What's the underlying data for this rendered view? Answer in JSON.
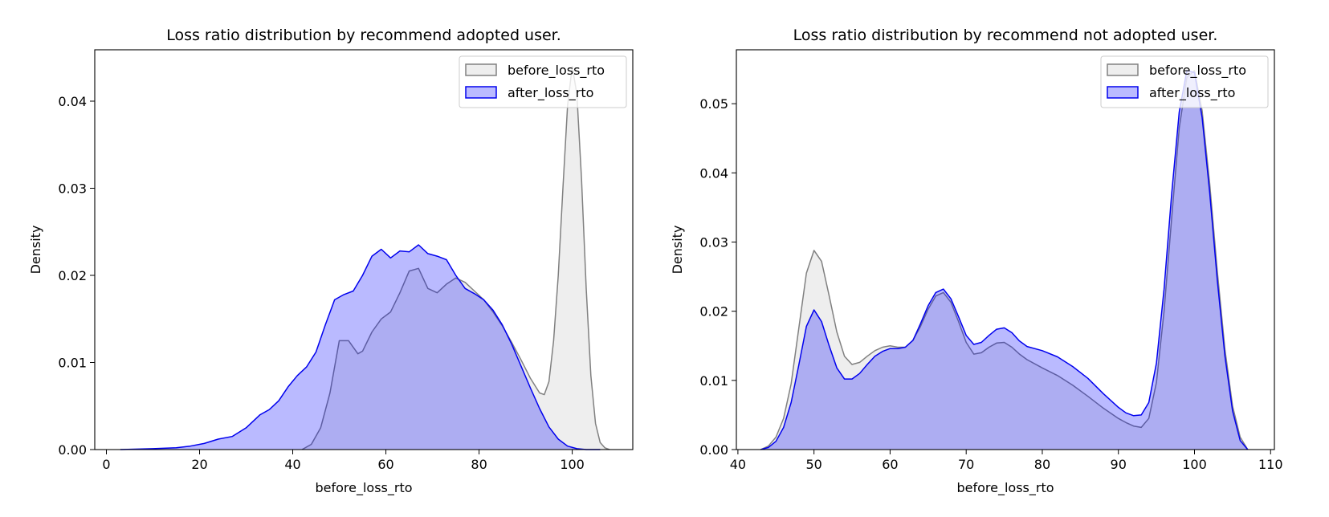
{
  "chart_data": [
    {
      "type": "area",
      "title": "Loss ratio distribution by recommend adopted user.",
      "xlabel": "before_loss_rto",
      "ylabel": "Density",
      "xlim": [
        -2.5,
        113
      ],
      "ylim": [
        0,
        0.0459
      ],
      "xticks": [
        "0",
        "20",
        "40",
        "60",
        "80",
        "100"
      ],
      "yticks": [
        "0.00",
        "0.01",
        "0.02",
        "0.03",
        "0.04"
      ],
      "xtick_values": [
        0,
        20,
        40,
        60,
        80,
        100
      ],
      "ytick_values": [
        0,
        0.01,
        0.02,
        0.03,
        0.04
      ],
      "legend": "upper right",
      "grid": false,
      "series": [
        {
          "name": "before_loss_rto",
          "color": "#808080",
          "fill": "#c0c0c0",
          "x": [
            42,
            44,
            46,
            48,
            50,
            52,
            54,
            55,
            57,
            59,
            61,
            63,
            65,
            67,
            69,
            71,
            73,
            75,
            77,
            79,
            81,
            83,
            85,
            87,
            89,
            91,
            93,
            94,
            95,
            96,
            97,
            98,
            99,
            100,
            101,
            102,
            103,
            104,
            105,
            106,
            107,
            108
          ],
          "y": [
            0.0,
            0.0006,
            0.0025,
            0.0065,
            0.0125,
            0.0125,
            0.011,
            0.0113,
            0.0135,
            0.015,
            0.0158,
            0.018,
            0.0205,
            0.0208,
            0.0185,
            0.018,
            0.019,
            0.0197,
            0.0192,
            0.0182,
            0.0172,
            0.0158,
            0.0142,
            0.0123,
            0.0103,
            0.0082,
            0.0065,
            0.0063,
            0.0078,
            0.0125,
            0.02,
            0.03,
            0.0395,
            0.044,
            0.0408,
            0.031,
            0.0185,
            0.0085,
            0.003,
            0.0008,
            0.0002,
            0.0
          ]
        },
        {
          "name": "after_loss_rto",
          "color": "#0000ee",
          "fill": "#0000ff",
          "x": [
            3,
            10,
            15,
            18,
            21,
            24,
            27,
            30,
            33,
            35,
            37,
            39,
            41,
            43,
            45,
            47,
            49,
            51,
            53,
            55,
            57,
            59,
            61,
            63,
            65,
            67,
            69,
            71,
            73,
            75,
            77,
            79,
            81,
            83,
            85,
            87,
            89,
            91,
            93,
            95,
            97,
            99,
            101,
            103,
            106
          ],
          "y": [
            0.0,
            0.0001,
            0.0002,
            0.0004,
            0.0007,
            0.0012,
            0.0015,
            0.0025,
            0.004,
            0.0046,
            0.0056,
            0.0072,
            0.0085,
            0.0095,
            0.0112,
            0.0143,
            0.0172,
            0.0178,
            0.0182,
            0.02,
            0.0222,
            0.023,
            0.022,
            0.0228,
            0.0227,
            0.0235,
            0.0225,
            0.0222,
            0.0218,
            0.02,
            0.0185,
            0.0179,
            0.0172,
            0.016,
            0.0143,
            0.0121,
            0.0096,
            0.0071,
            0.0047,
            0.0026,
            0.0012,
            0.0004,
            0.0001,
            0.0,
            0.0
          ]
        }
      ]
    },
    {
      "type": "area",
      "title": "Loss ratio distribution by recommend not adopted user.",
      "xlabel": "before_loss_rto",
      "ylabel": "Density",
      "xlim": [
        39.8,
        110.5
      ],
      "ylim": [
        0,
        0.0578
      ],
      "xticks": [
        "40",
        "50",
        "60",
        "70",
        "80",
        "90",
        "100",
        "110"
      ],
      "yticks": [
        "0.00",
        "0.01",
        "0.02",
        "0.03",
        "0.04",
        "0.05"
      ],
      "xtick_values": [
        40,
        50,
        60,
        70,
        80,
        90,
        100,
        110
      ],
      "ytick_values": [
        0,
        0.01,
        0.02,
        0.03,
        0.04,
        0.05
      ],
      "legend": "upper right",
      "grid": false,
      "series": [
        {
          "name": "before_loss_rto",
          "color": "#808080",
          "fill": "#c0c0c0",
          "x": [
            43,
            44,
            45,
            46,
            47,
            48,
            49,
            50,
            51,
            52,
            53,
            54,
            55,
            56,
            57,
            58,
            59,
            60,
            61,
            62,
            63,
            64,
            65,
            66,
            67,
            68,
            69,
            70,
            71,
            72,
            73,
            74,
            75,
            76,
            77,
            78,
            80,
            82,
            84,
            86,
            88,
            90,
            91,
            92,
            93,
            94,
            95,
            96,
            97,
            98,
            99,
            100,
            101,
            102,
            103,
            104,
            105,
            106,
            107
          ],
          "y": [
            0.0,
            0.0005,
            0.0018,
            0.0045,
            0.0095,
            0.0175,
            0.0255,
            0.0288,
            0.0272,
            0.0222,
            0.017,
            0.0135,
            0.0123,
            0.0126,
            0.0135,
            0.0143,
            0.0148,
            0.015,
            0.0148,
            0.0148,
            0.0158,
            0.0178,
            0.0203,
            0.0222,
            0.0227,
            0.0213,
            0.0185,
            0.0155,
            0.0138,
            0.014,
            0.0148,
            0.0154,
            0.0155,
            0.0148,
            0.0138,
            0.013,
            0.0118,
            0.0107,
            0.0093,
            0.0077,
            0.006,
            0.0045,
            0.0039,
            0.0034,
            0.0032,
            0.0045,
            0.0097,
            0.02,
            0.0335,
            0.0465,
            0.0538,
            0.0548,
            0.049,
            0.0385,
            0.0258,
            0.0145,
            0.0063,
            0.0018,
            0.0
          ]
        },
        {
          "name": "after_loss_rto",
          "color": "#0000ee",
          "fill": "#0000ff",
          "x": [
            43,
            44,
            45,
            46,
            47,
            48,
            49,
            50,
            51,
            52,
            53,
            54,
            55,
            56,
            57,
            58,
            59,
            60,
            61,
            62,
            63,
            64,
            65,
            66,
            67,
            68,
            69,
            70,
            71,
            72,
            73,
            74,
            75,
            76,
            77,
            78,
            80,
            82,
            84,
            86,
            88,
            90,
            91,
            92,
            93,
            94,
            95,
            96,
            97,
            98,
            99,
            100,
            101,
            102,
            103,
            104,
            105,
            106,
            107
          ],
          "y": [
            0.0,
            0.0003,
            0.0012,
            0.0032,
            0.0068,
            0.0122,
            0.0178,
            0.0202,
            0.0185,
            0.015,
            0.0118,
            0.0102,
            0.0102,
            0.011,
            0.0123,
            0.0135,
            0.0142,
            0.0146,
            0.0146,
            0.0148,
            0.0158,
            0.0182,
            0.0208,
            0.0227,
            0.0232,
            0.0218,
            0.0192,
            0.0165,
            0.0152,
            0.0155,
            0.0165,
            0.0174,
            0.0176,
            0.0169,
            0.0157,
            0.0149,
            0.0143,
            0.0134,
            0.012,
            0.0103,
            0.0081,
            0.0061,
            0.0053,
            0.0049,
            0.005,
            0.0068,
            0.0125,
            0.0232,
            0.037,
            0.0488,
            0.0548,
            0.0545,
            0.048,
            0.0372,
            0.0245,
            0.0135,
            0.0056,
            0.0013,
            0.0
          ]
        }
      ]
    }
  ]
}
